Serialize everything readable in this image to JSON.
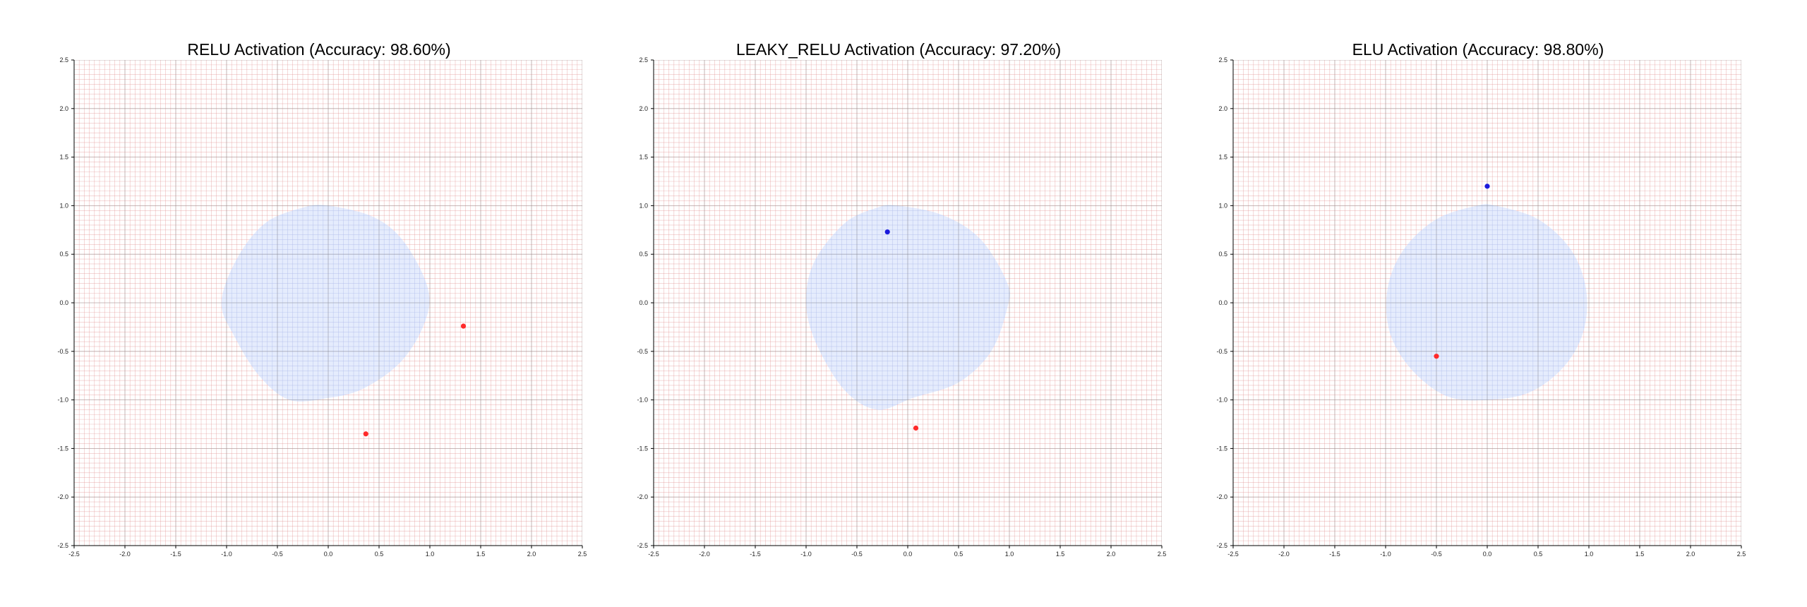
{
  "chart_data": [
    {
      "type": "scatter",
      "title": "RELU Activation (Accuracy: 98.60%)",
      "xlabel": "",
      "ylabel": "",
      "xlim": [
        -2.5,
        2.5
      ],
      "ylim": [
        -2.5,
        2.5
      ],
      "x_ticks": [
        "-2.5",
        "-2.0",
        "-1.5",
        "-1.0",
        "-0.5",
        "0.0",
        "0.5",
        "1.0",
        "1.5",
        "2.0",
        "2.5"
      ],
      "y_ticks": [
        "2.5",
        "2.0",
        "1.5",
        "1.0",
        "0.5",
        "0.0",
        "-0.5",
        "-1.0",
        "-1.5",
        "-2.0",
        "-2.5"
      ],
      "grid": true,
      "background_region": {
        "class": "outside",
        "color": "#e05050"
      },
      "decision_region": {
        "class": "inside",
        "color": "#c8d6f5",
        "boundary": [
          [
            0.0,
            1.0
          ],
          [
            0.45,
            0.88
          ],
          [
            0.75,
            0.62
          ],
          [
            0.98,
            0.15
          ],
          [
            0.95,
            -0.2
          ],
          [
            0.72,
            -0.6
          ],
          [
            0.35,
            -0.88
          ],
          [
            0.0,
            -0.98
          ],
          [
            -0.38,
            -1.0
          ],
          [
            -0.68,
            -0.75
          ],
          [
            -0.92,
            -0.35
          ],
          [
            -1.05,
            0.0
          ],
          [
            -0.9,
            0.45
          ],
          [
            -0.62,
            0.82
          ],
          [
            -0.25,
            0.98
          ]
        ]
      },
      "series": [
        {
          "color": "#ff2a2a",
          "points": [
            [
              1.33,
              -0.24
            ],
            [
              0.37,
              -1.35
            ]
          ]
        }
      ]
    },
    {
      "type": "scatter",
      "title": "LEAKY_RELU Activation (Accuracy: 97.20%)",
      "xlabel": "",
      "ylabel": "",
      "xlim": [
        -2.5,
        2.5
      ],
      "ylim": [
        -2.5,
        2.5
      ],
      "x_ticks": [
        "-2.5",
        "-2.0",
        "-1.5",
        "-1.0",
        "-0.5",
        "0.0",
        "0.5",
        "1.0",
        "1.5",
        "2.0",
        "2.5"
      ],
      "y_ticks": [
        "2.5",
        "2.0",
        "1.5",
        "1.0",
        "0.5",
        "0.0",
        "-0.5",
        "-1.0",
        "-1.5",
        "-2.0",
        "-2.5"
      ],
      "grid": true,
      "background_region": {
        "class": "outside",
        "color": "#e05050"
      },
      "decision_region": {
        "class": "inside",
        "color": "#c8d6f5",
        "boundary": [
          [
            -0.1,
            1.0
          ],
          [
            0.35,
            0.9
          ],
          [
            0.72,
            0.65
          ],
          [
            0.98,
            0.2
          ],
          [
            0.98,
            -0.05
          ],
          [
            0.82,
            -0.5
          ],
          [
            0.5,
            -0.82
          ],
          [
            0.05,
            -0.98
          ],
          [
            -0.3,
            -1.1
          ],
          [
            -0.62,
            -0.9
          ],
          [
            -0.9,
            -0.42
          ],
          [
            -1.0,
            0.0
          ],
          [
            -0.92,
            0.42
          ],
          [
            -0.62,
            0.82
          ],
          [
            -0.3,
            0.98
          ]
        ]
      },
      "series": [
        {
          "color": "#1a1adc",
          "points": [
            [
              -0.2,
              0.73
            ]
          ]
        },
        {
          "color": "#ff2a2a",
          "points": [
            [
              0.08,
              -1.29
            ]
          ]
        }
      ]
    },
    {
      "type": "scatter",
      "title": "ELU Activation (Accuracy: 98.80%)",
      "xlabel": "",
      "ylabel": "",
      "xlim": [
        -2.5,
        2.5
      ],
      "ylim": [
        -2.5,
        2.5
      ],
      "x_ticks": [
        "-2.5",
        "-2.0",
        "-1.5",
        "-1.0",
        "-0.5",
        "0.0",
        "0.5",
        "1.0",
        "1.5",
        "2.0",
        "2.5"
      ],
      "y_ticks": [
        "2.5",
        "2.0",
        "1.5",
        "1.0",
        "0.5",
        "0.0",
        "-0.5",
        "-1.0",
        "-1.5",
        "-2.0",
        "-2.5"
      ],
      "grid": true,
      "background_region": {
        "class": "outside",
        "color": "#e05050"
      },
      "decision_region": {
        "class": "inside",
        "color": "#c8d6f5",
        "boundary": [
          [
            0.08,
            1.0
          ],
          [
            0.5,
            0.86
          ],
          [
            0.82,
            0.55
          ],
          [
            0.97,
            0.15
          ],
          [
            0.95,
            -0.28
          ],
          [
            0.76,
            -0.65
          ],
          [
            0.42,
            -0.92
          ],
          [
            0.0,
            -1.0
          ],
          [
            -0.4,
            -0.96
          ],
          [
            -0.75,
            -0.68
          ],
          [
            -0.96,
            -0.3
          ],
          [
            -0.98,
            0.15
          ],
          [
            -0.82,
            0.55
          ],
          [
            -0.5,
            0.86
          ],
          [
            -0.1,
            1.0
          ]
        ]
      },
      "series": [
        {
          "color": "#1a1adc",
          "points": [
            [
              0.0,
              1.2
            ]
          ]
        },
        {
          "color": "#ff2a2a",
          "points": [
            [
              -0.5,
              -0.55
            ]
          ]
        }
      ]
    }
  ]
}
